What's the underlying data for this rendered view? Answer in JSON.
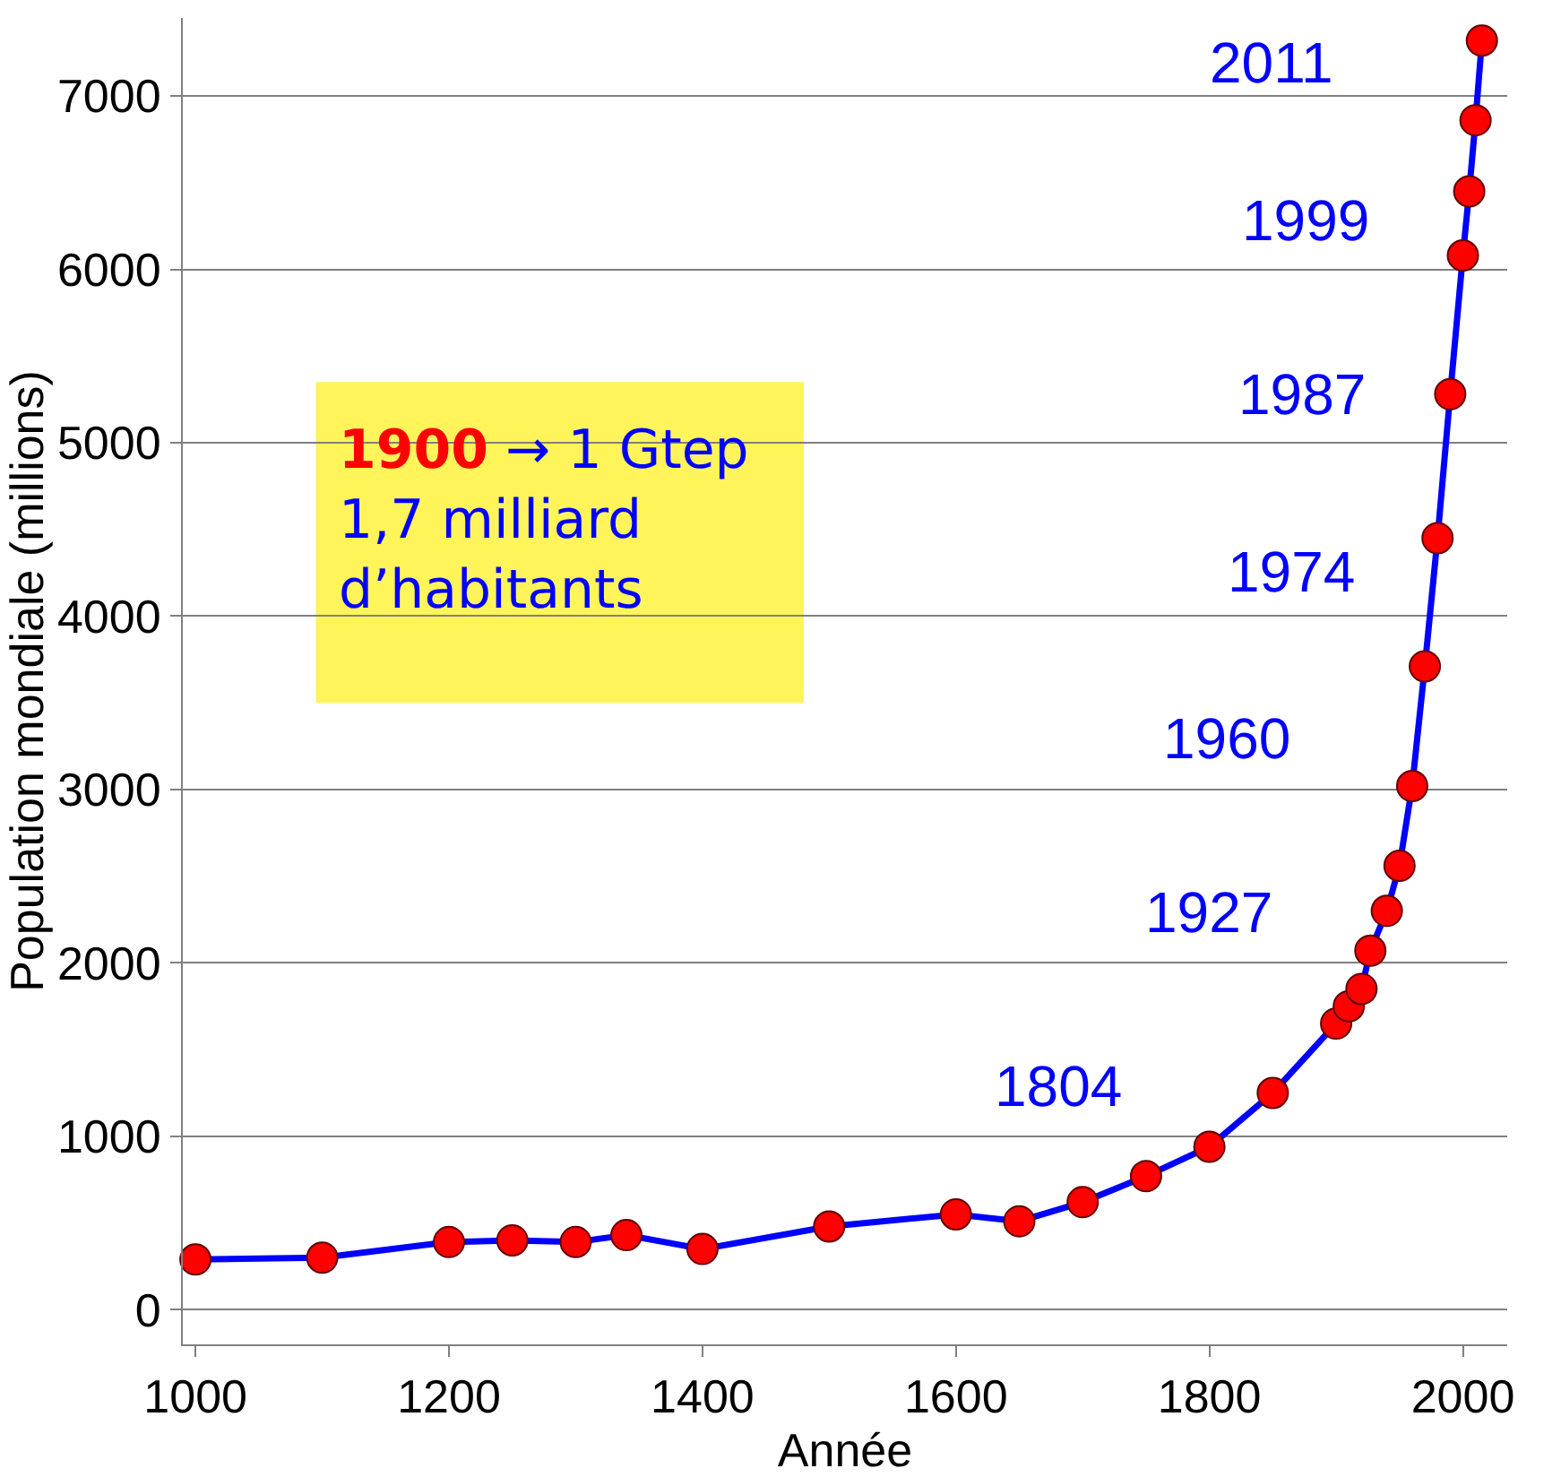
{
  "chart_data": {
    "type": "line",
    "xlabel": "Année",
    "ylabel": "Population mondiale (millions)",
    "x": [
      1000,
      1100,
      1200,
      1250,
      1300,
      1340,
      1400,
      1500,
      1600,
      1650,
      1700,
      1750,
      1800,
      1850,
      1900,
      1910,
      1920,
      1927,
      1940,
      1950,
      1960,
      1970,
      1980,
      1990,
      2000,
      2005,
      2010,
      2015
    ],
    "series": [
      {
        "color": "#0000ff",
        "colors": [
          "#ff0000",
          "#ff0000",
          "#ff0000",
          "#ff0000",
          "#ff0000",
          "#ff0000",
          "#ff0000",
          "#ff0000",
          "#ff0000",
          "#ff0000",
          "#ff0000",
          "#ff0000",
          "#ff0000",
          "#ff0000",
          "#ff0000",
          "#ff0000",
          "#ff0000",
          "#ff0000",
          "#ff0000",
          "#ff0000",
          "#ff0000",
          "#ff0000",
          "#ff0000",
          "#ff0000",
          "#ff0000",
          "#ff0000",
          "#ff0000",
          "#ff0000"
        ],
        "values": [
          290,
          300,
          390,
          400,
          390,
          430,
          350,
          480,
          550,
          510,
          620,
          770,
          940,
          1250,
          1650,
          1750,
          1850,
          2070,
          2300,
          2560,
          3020,
          3710,
          4450,
          5280,
          6080,
          6450,
          6860,
          7320
        ]
      }
    ],
    "marker": "circle",
    "line_style": "solid",
    "grid": "y",
    "xlim": [
      990,
      2035
    ],
    "ylim": [
      -200,
      7450
    ],
    "xticks": [
      1000,
      1200,
      1400,
      1600,
      1800,
      2000
    ],
    "yticks": [
      0,
      1000,
      2000,
      3000,
      4000,
      5000,
      6000,
      7000
    ],
    "annotations": [
      "1804",
      "1927",
      "1960",
      "1974",
      "1987",
      "1999",
      "2011",
      "1900",
      "→ 1 Gtep",
      "1,7 milliard",
      "d’habitants"
    ]
  }
}
